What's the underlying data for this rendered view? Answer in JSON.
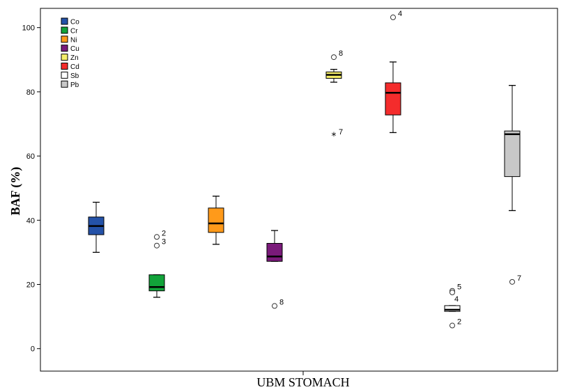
{
  "chart_data": {
    "type": "boxplot",
    "xlabel": "UBM STOMACH",
    "ylabel": "BAF (%)",
    "ylim": [
      -7,
      106
    ],
    "yticks": [
      0,
      20,
      40,
      60,
      80,
      100
    ],
    "legend_position": "top-left",
    "series": [
      {
        "name": "Co",
        "color": "#2452a8",
        "min": 30,
        "q1": 35.5,
        "median": 38.2,
        "q3": 41,
        "max": 45.6,
        "outliers": []
      },
      {
        "name": "Cr",
        "color": "#12a33a",
        "min": 16,
        "q1": 18,
        "median": 19.2,
        "q3": 23,
        "max": 23,
        "outliers": [
          {
            "value": 34.8,
            "label": "2",
            "marker": "circle"
          },
          {
            "value": 32.1,
            "label": "3",
            "marker": "circle"
          }
        ]
      },
      {
        "name": "Ni",
        "color": "#ff9a1a",
        "min": 32.5,
        "q1": 36.2,
        "median": 39,
        "q3": 43.8,
        "max": 47.5,
        "outliers": []
      },
      {
        "name": "Cu",
        "color": "#7a1a7a",
        "min": 27.2,
        "q1": 27.2,
        "median": 28.7,
        "q3": 32.8,
        "max": 36.8,
        "outliers": [
          {
            "value": 13.3,
            "label": "8",
            "marker": "circle"
          }
        ]
      },
      {
        "name": "Zn",
        "color": "#f5ee6a",
        "min": 83,
        "q1": 84.2,
        "median": 85.3,
        "q3": 86.2,
        "max": 87,
        "outliers": [
          {
            "value": 90.8,
            "label": "8",
            "marker": "circle"
          },
          {
            "value": 66.3,
            "label": "7",
            "marker": "star"
          }
        ]
      },
      {
        "name": "Cd",
        "color": "#f42c2c",
        "min": 67.3,
        "q1": 72.8,
        "median": 79.7,
        "q3": 82.8,
        "max": 89.3,
        "outliers": [
          {
            "value": 103.2,
            "label": "4",
            "marker": "circle"
          }
        ]
      },
      {
        "name": "Sb",
        "color": "#ffffff",
        "min": 11.6,
        "q1": 11.6,
        "median": 12.1,
        "q3": 13.4,
        "max": 13.4,
        "outliers": [
          {
            "value": 18,
            "label": "5",
            "marker": "circle"
          },
          {
            "value": 17.5,
            "label": "",
            "marker": "circle"
          },
          {
            "value": 7.2,
            "label": "2",
            "marker": "circle"
          }
        ],
        "annotations": [
          {
            "value": 15.6,
            "label": "4"
          }
        ]
      },
      {
        "name": "Pb",
        "color": "#c8c8c8",
        "min": 43,
        "q1": 53.6,
        "median": 66.8,
        "q3": 67.8,
        "max": 82,
        "outliers": [
          {
            "value": 20.8,
            "label": "7",
            "marker": "circle"
          }
        ]
      }
    ]
  }
}
